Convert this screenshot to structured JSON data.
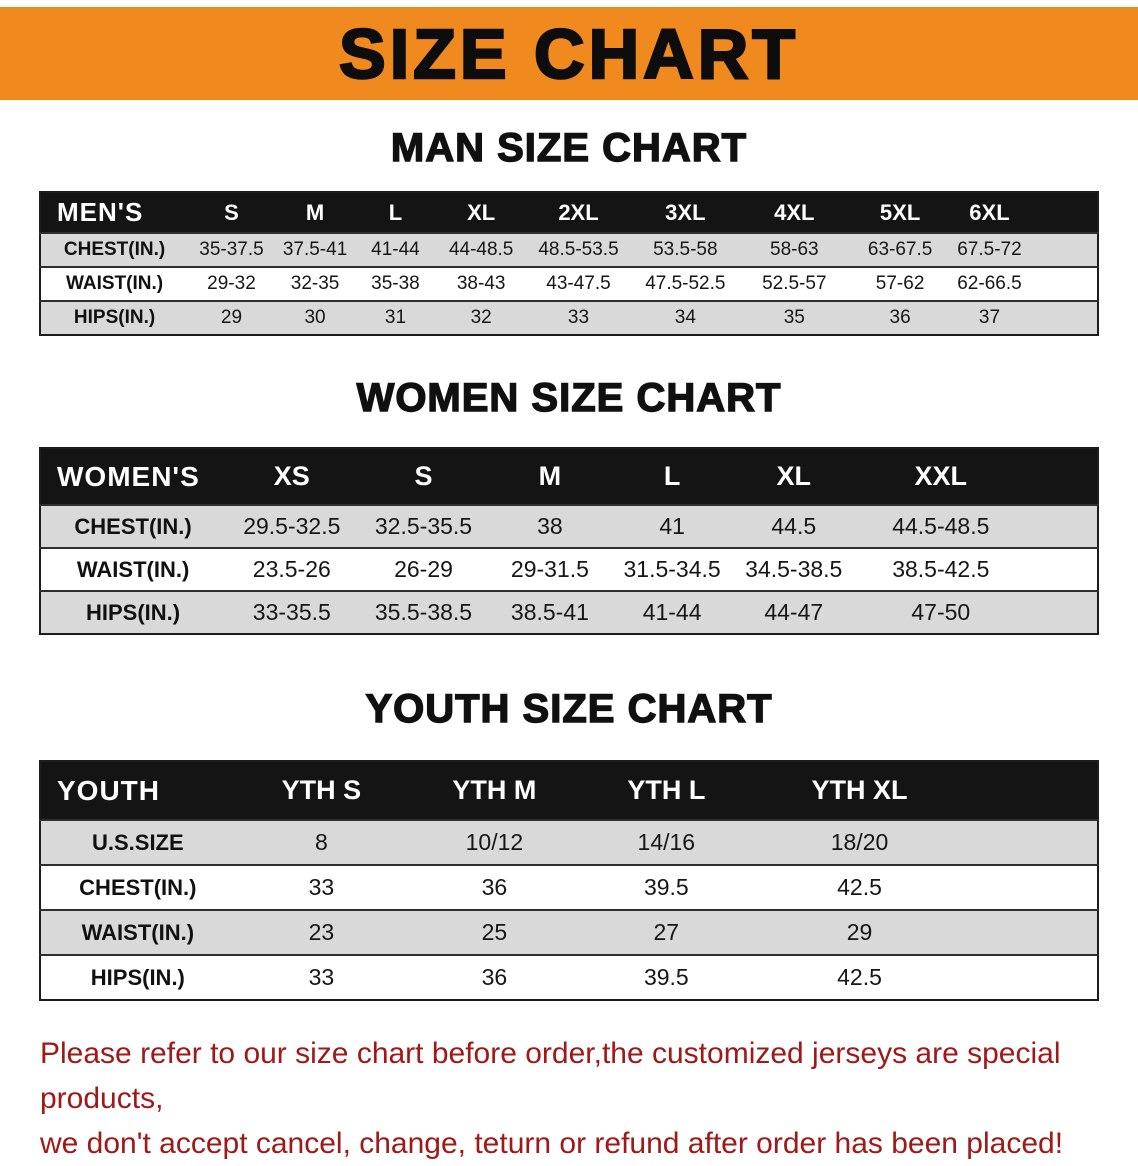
{
  "banner": {
    "title": "SIZE CHART"
  },
  "colors": {
    "banner_bg": "#f08a1e",
    "table_header_bg": "#141414",
    "row_stripe": "#d9d9d9",
    "notice_red": "#a01818"
  },
  "sections": [
    {
      "heading": "MAN SIZE CHART",
      "table": {
        "header": [
          "MEN'S",
          "S",
          "M",
          "L",
          "XL",
          "2XL",
          "3XL",
          "4XL",
          "5XL",
          "6XL"
        ],
        "rows": [
          [
            "CHEST(IN.)",
            "35-37.5",
            "37.5-41",
            "41-44",
            "44-48.5",
            "48.5-53.5",
            "53.5-58",
            "58-63",
            "63-67.5",
            "67.5-72"
          ],
          [
            "WAIST(IN.)",
            "29-32",
            "32-35",
            "35-38",
            "38-43",
            "43-47.5",
            "47.5-52.5",
            "52.5-57",
            "57-62",
            "62-66.5"
          ],
          [
            "HIPS(IN.)",
            "29",
            "30",
            "31",
            "32",
            "33",
            "34",
            "35",
            "36",
            "37"
          ]
        ]
      }
    },
    {
      "heading": "WOMEN SIZE CHART",
      "table": {
        "header": [
          "WOMEN'S",
          "XS",
          "S",
          "M",
          "L",
          "XL",
          "XXL"
        ],
        "rows": [
          [
            "CHEST(IN.)",
            "29.5-32.5",
            "32.5-35.5",
            "38",
            "41",
            "44.5",
            "44.5-48.5"
          ],
          [
            "WAIST(IN.)",
            "23.5-26",
            "26-29",
            "29-31.5",
            "31.5-34.5",
            "34.5-38.5",
            "38.5-42.5"
          ],
          [
            "HIPS(IN.)",
            "33-35.5",
            "35.5-38.5",
            "38.5-41",
            "41-44",
            "44-47",
            "47-50"
          ]
        ]
      }
    },
    {
      "heading": "YOUTH SIZE CHART",
      "table": {
        "header": [
          "YOUTH",
          "YTH S",
          "YTH M",
          "YTH L",
          "YTH XL"
        ],
        "rows": [
          [
            "U.S.SIZE",
            "8",
            "10/12",
            "14/16",
            "18/20"
          ],
          [
            "CHEST(IN.)",
            "33",
            "36",
            "39.5",
            "42.5"
          ],
          [
            "WAIST(IN.)",
            "23",
            "25",
            "27",
            "29"
          ],
          [
            "HIPS(IN.)",
            "33",
            "36",
            "39.5",
            "42.5"
          ]
        ]
      }
    }
  ],
  "footer": {
    "line1": "Please refer to our size chart before order,the customized jerseys are special products,",
    "line2": "we don't accept cancel, change, teturn or refund after order has been placed!"
  }
}
